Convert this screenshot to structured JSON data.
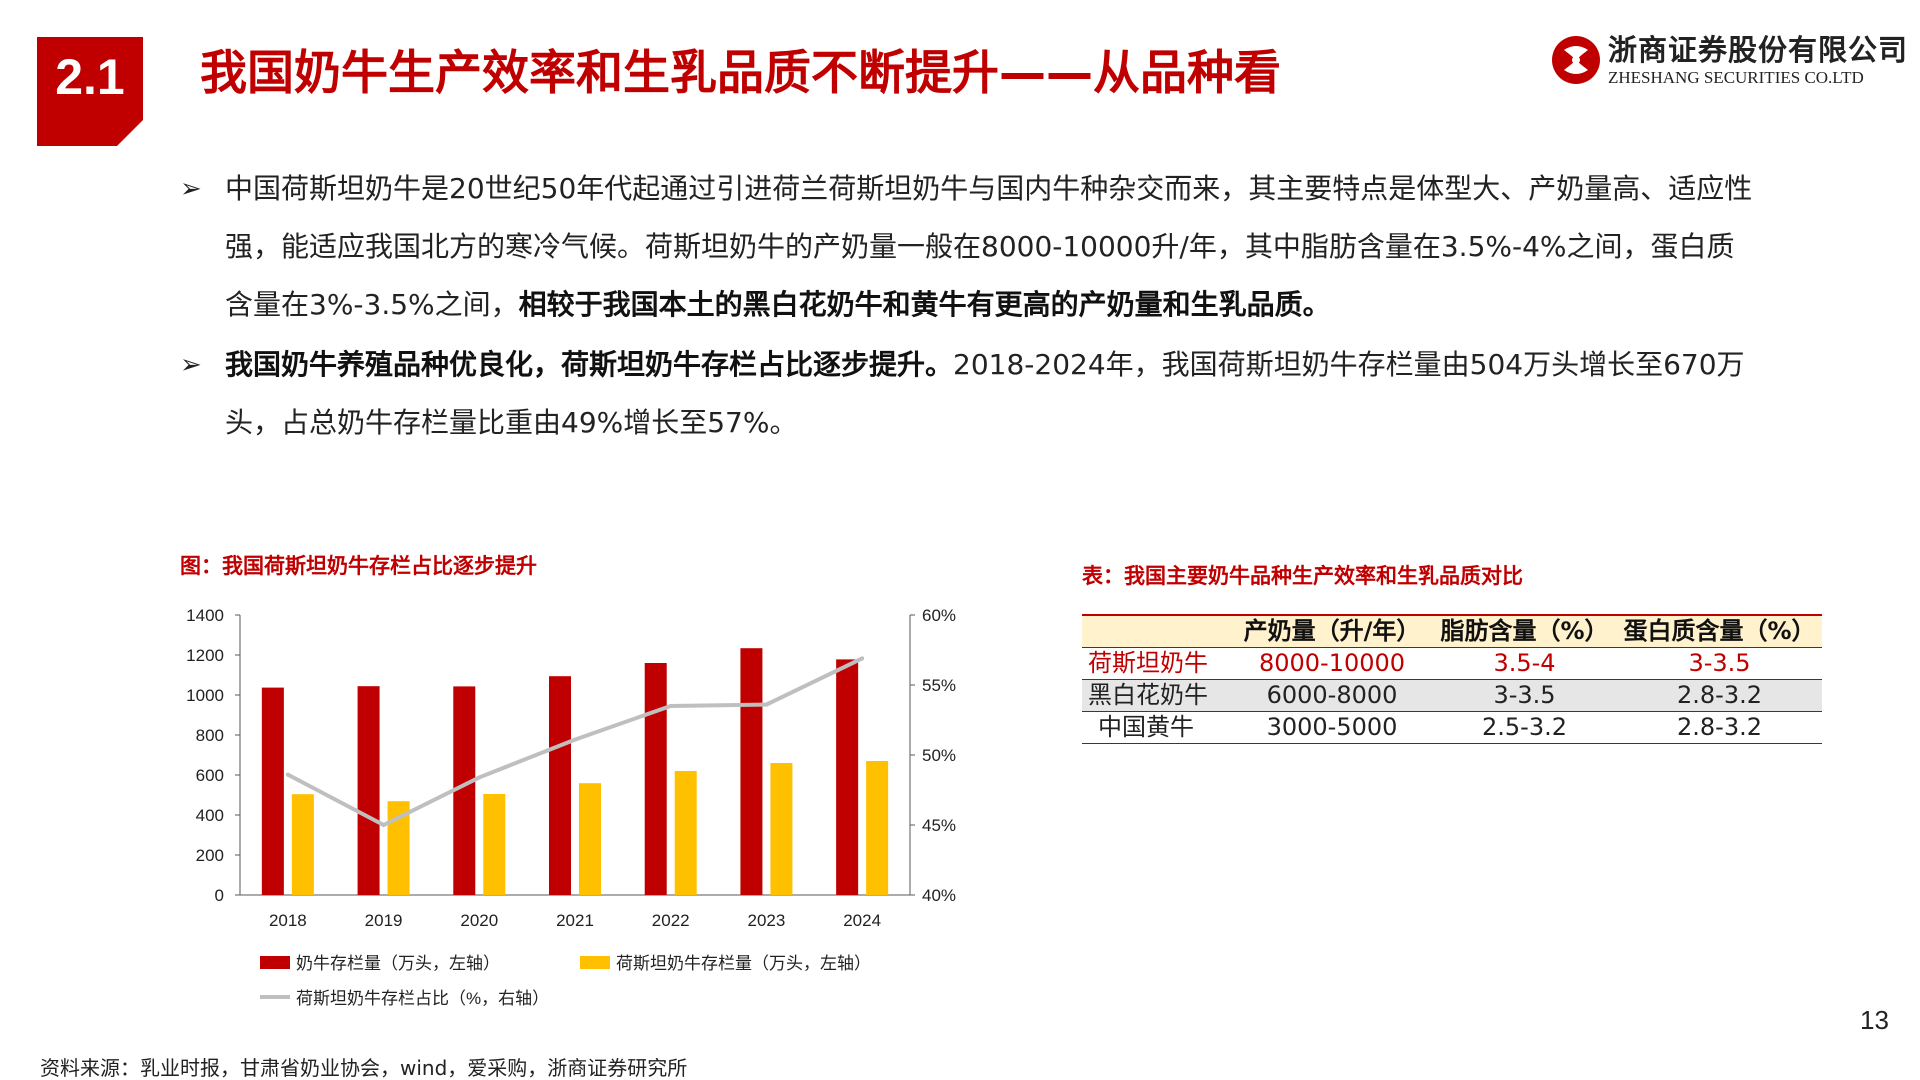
{
  "header": {
    "section_number": "2.1",
    "title": "我国奶牛生产效率和生乳品质不断提升——从品种看",
    "logo_cn": "浙商证券股份有限公司",
    "logo_en": "ZHESHANG SECURITIES CO.LTD",
    "brand_color": "#c00000"
  },
  "bullets": [
    {
      "parts": [
        {
          "text": "中国荷斯坦奶牛是20世纪50年代起通过引进荷兰荷斯坦奶牛与国内牛种杂交而来，其主要特点是体型大、产奶量高、适应性强，能适应我国北方的寒冷气候。荷斯坦奶牛的产奶量一般在8000-10000升/年，其中脂肪含量在3.5%-4%之间，蛋白质含量在3%-3.5%之间，",
          "bold": false
        },
        {
          "text": "相较于我国本土的黑白花奶牛和黄牛有更高的产奶量和生乳品质。",
          "bold": true
        }
      ]
    },
    {
      "parts": [
        {
          "text": "我国奶牛养殖品种优良化，荷斯坦奶牛存栏占比逐步提升。",
          "bold": true
        },
        {
          "text": "2018-2024年，我国荷斯坦奶牛存栏量由504万头增长至670万头，占总奶牛存栏量比重由49%增长至57%。",
          "bold": false
        }
      ]
    }
  ],
  "chart_title": "图：我国荷斯坦奶牛存栏占比逐步提升",
  "chart_data": {
    "type": "bar",
    "categories": [
      "2018",
      "2019",
      "2020",
      "2021",
      "2022",
      "2023",
      "2024"
    ],
    "series": [
      {
        "name": "奶牛存栏量（万头，左轴）",
        "type": "bar",
        "axis": "left",
        "color": "#c00000",
        "values": [
          1037,
          1044,
          1043,
          1094,
          1160,
          1234,
          1178
        ]
      },
      {
        "name": "荷斯坦奶牛存栏量（万头，左轴）",
        "type": "bar",
        "axis": "left",
        "color": "#ffc000",
        "values": [
          504,
          469,
          505,
          559,
          620,
          660,
          670
        ]
      },
      {
        "name": "荷斯坦奶牛存栏占比（%，右轴）",
        "type": "line",
        "axis": "right",
        "color": "#bfbfbf",
        "values": [
          48.6,
          45.0,
          48.4,
          51.1,
          53.5,
          53.6,
          56.9
        ]
      }
    ],
    "left_axis": {
      "min": 0,
      "max": 1400,
      "ticks": [
        0,
        200,
        400,
        600,
        800,
        1000,
        1200,
        1400
      ]
    },
    "right_axis": {
      "min": 40,
      "max": 60,
      "ticks": [
        "40%",
        "45%",
        "50%",
        "55%",
        "60%"
      ]
    },
    "legend_position": "bottom",
    "grid": false
  },
  "table_title": "表：我国主要奶牛品种生产效率和生乳品质对比",
  "table": {
    "headers": [
      "",
      "产奶量（升/年）",
      "脂肪含量（%）",
      "蛋白质含量（%）"
    ],
    "rows": [
      [
        "荷斯坦奶牛",
        "8000-10000",
        "3.5-4",
        "3-3.5"
      ],
      [
        "黑白花奶牛",
        "6000-8000",
        "3-3.5",
        "2.8-3.2"
      ],
      [
        "中国黄牛",
        "3000-5000",
        "2.5-3.2",
        "2.8-3.2"
      ]
    ]
  },
  "footer": {
    "page_number": "13",
    "source": "资料来源：乳业时报，甘肃省奶业协会，wind，爱采购，浙商证券研究所"
  }
}
